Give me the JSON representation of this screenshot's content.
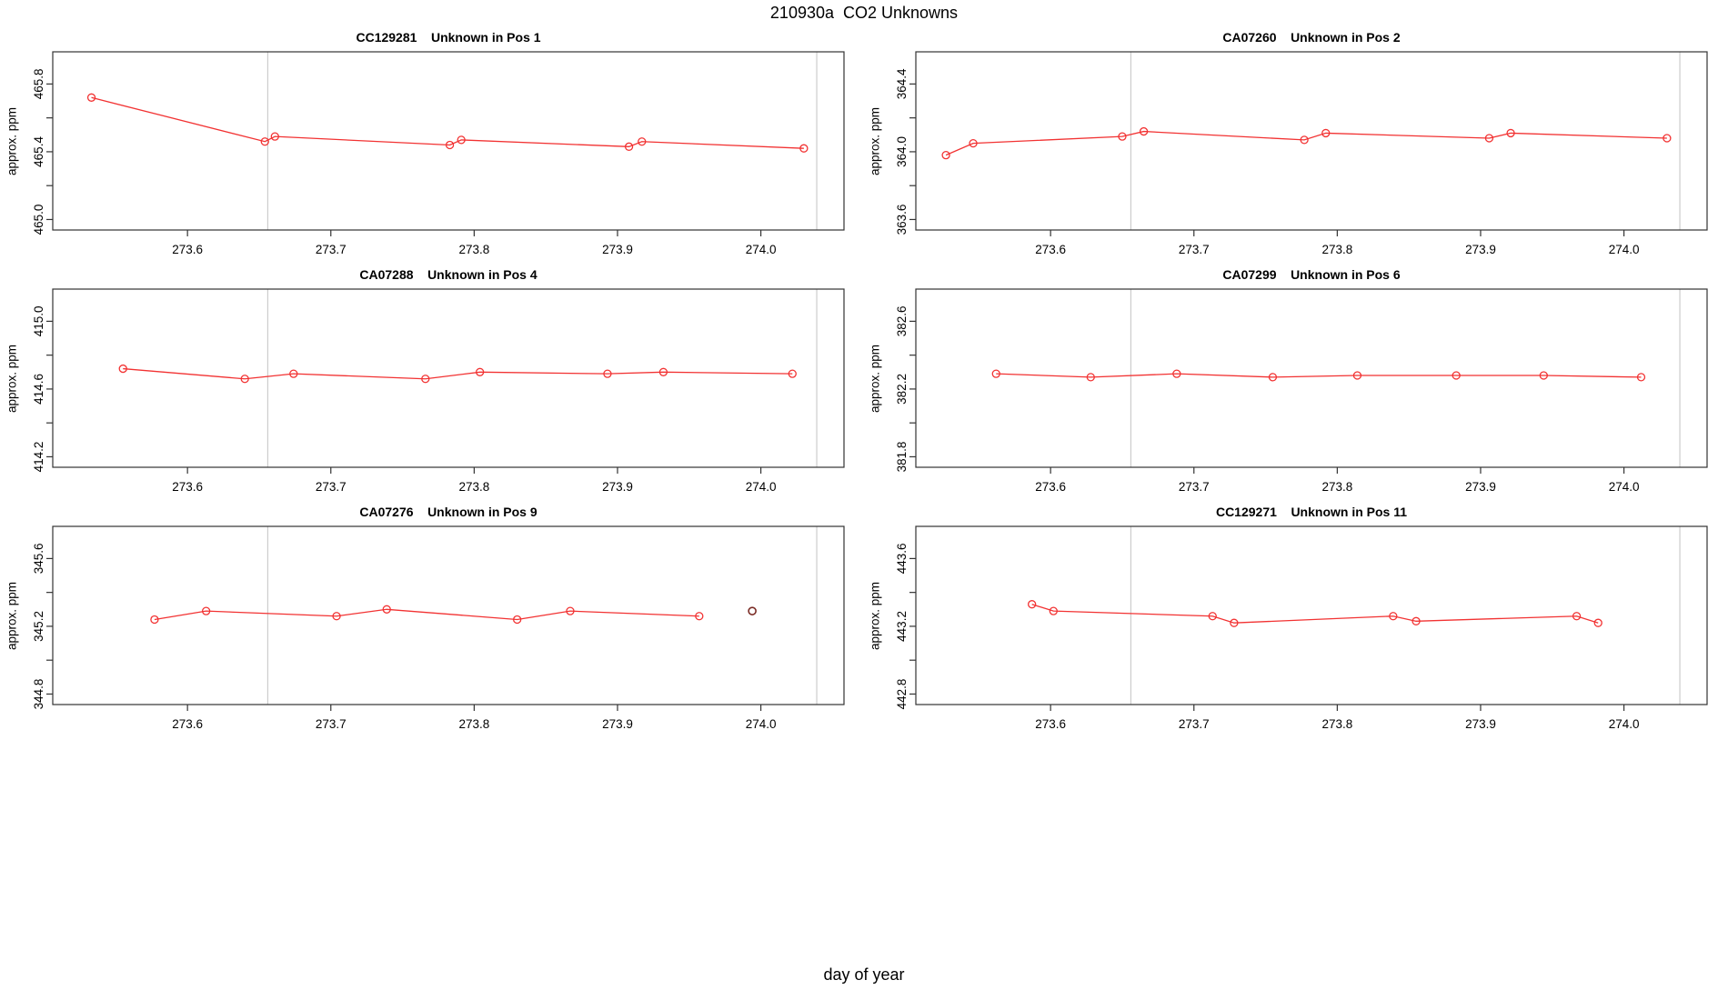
{
  "page_title": "210930a  CO2 Unknowns",
  "x_axis_label": "day of year",
  "colors": {
    "series": "#f23232",
    "dark_point": "#7a2b24",
    "vline": "#cccccc",
    "axis": "#333333",
    "text": "#000000"
  },
  "chart_data": [
    {
      "type": "line",
      "title": "CC129281    Unknown in Pos 1",
      "ylabel": "approx. ppm",
      "xlim": [
        273.506,
        274.058
      ],
      "ylim": [
        464.938,
        465.99
      ],
      "x_ticks": [
        273.6,
        273.7,
        273.8,
        273.9,
        274.0
      ],
      "y_ticks": [
        465.0,
        465.4,
        465.8
      ],
      "y_ticks_minor": [
        465.2,
        465.6
      ],
      "vlines": [
        273.656,
        274.039
      ],
      "x": [
        273.533,
        273.654,
        273.661,
        273.783,
        273.791,
        273.908,
        273.917,
        274.03
      ],
      "y": [
        465.72,
        465.46,
        465.49,
        465.44,
        465.47,
        465.43,
        465.46,
        465.42
      ],
      "extra_points": []
    },
    {
      "type": "line",
      "title": "CA07260    Unknown in Pos 2",
      "ylabel": "approx. ppm",
      "xlim": [
        273.506,
        274.058
      ],
      "ylim": [
        363.538,
        364.59
      ],
      "x_ticks": [
        273.6,
        273.7,
        273.8,
        273.9,
        274.0
      ],
      "y_ticks": [
        363.6,
        364.0,
        364.4
      ],
      "y_ticks_minor": [
        363.8,
        364.2
      ],
      "vlines": [
        273.656,
        274.039
      ],
      "x": [
        273.527,
        273.546,
        273.65,
        273.665,
        273.777,
        273.792,
        273.906,
        273.921,
        274.03
      ],
      "y": [
        363.98,
        364.05,
        364.09,
        364.12,
        364.07,
        364.11,
        364.08,
        364.11,
        364.08
      ],
      "extra_points": []
    },
    {
      "type": "line",
      "title": "CA07288    Unknown in Pos 4",
      "ylabel": "approx. ppm",
      "xlim": [
        273.506,
        274.058
      ],
      "ylim": [
        414.138,
        415.19
      ],
      "x_ticks": [
        273.6,
        273.7,
        273.8,
        273.9,
        274.0
      ],
      "y_ticks": [
        414.2,
        414.6,
        415.0
      ],
      "y_ticks_minor": [
        414.4,
        414.8
      ],
      "vlines": [
        273.656,
        274.039
      ],
      "x": [
        273.555,
        273.64,
        273.674,
        273.766,
        273.804,
        273.893,
        273.932,
        274.022
      ],
      "y": [
        414.72,
        414.66,
        414.69,
        414.66,
        414.7,
        414.69,
        414.7,
        414.69
      ],
      "extra_points": []
    },
    {
      "type": "line",
      "title": "CA07299    Unknown in Pos 6",
      "ylabel": "approx. ppm",
      "xlim": [
        273.506,
        274.058
      ],
      "ylim": [
        381.738,
        382.79
      ],
      "x_ticks": [
        273.6,
        273.7,
        273.8,
        273.9,
        274.0
      ],
      "y_ticks": [
        381.8,
        382.2,
        382.6
      ],
      "y_ticks_minor": [
        382.0,
        382.4
      ],
      "vlines": [
        273.656,
        274.039
      ],
      "x": [
        273.562,
        273.628,
        273.688,
        273.755,
        273.814,
        273.883,
        273.944,
        274.012
      ],
      "y": [
        382.29,
        382.27,
        382.29,
        382.27,
        382.28,
        382.28,
        382.28,
        382.27
      ],
      "extra_points": []
    },
    {
      "type": "line",
      "title": "CA07276    Unknown in Pos 9",
      "ylabel": "approx. ppm",
      "xlim": [
        273.506,
        274.058
      ],
      "ylim": [
        344.738,
        345.79
      ],
      "x_ticks": [
        273.6,
        273.7,
        273.8,
        273.9,
        274.0
      ],
      "y_ticks": [
        344.8,
        345.2,
        345.6
      ],
      "y_ticks_minor": [
        345.0,
        345.4
      ],
      "vlines": [
        273.656,
        274.039
      ],
      "x": [
        273.577,
        273.613,
        273.704,
        273.739,
        273.83,
        273.867,
        273.957
      ],
      "y": [
        345.24,
        345.29,
        345.26,
        345.3,
        345.24,
        345.29,
        345.26
      ],
      "extra_points": [
        {
          "x": 273.994,
          "y": 345.29,
          "color": "#7a2b24"
        }
      ]
    },
    {
      "type": "line",
      "title": "CC129271    Unknown in Pos 11",
      "ylabel": "approx. ppm",
      "xlim": [
        273.506,
        274.058
      ],
      "ylim": [
        442.738,
        443.79
      ],
      "x_ticks": [
        273.6,
        273.7,
        273.8,
        273.9,
        274.0
      ],
      "y_ticks": [
        442.8,
        443.2,
        443.6
      ],
      "y_ticks_minor": [
        443.0,
        443.4
      ],
      "vlines": [
        273.656,
        274.039
      ],
      "x": [
        273.587,
        273.602,
        273.713,
        273.728,
        273.839,
        273.855,
        273.967,
        273.982
      ],
      "y": [
        443.33,
        443.29,
        443.26,
        443.22,
        443.26,
        443.23,
        443.26,
        443.22
      ],
      "extra_points": []
    }
  ]
}
